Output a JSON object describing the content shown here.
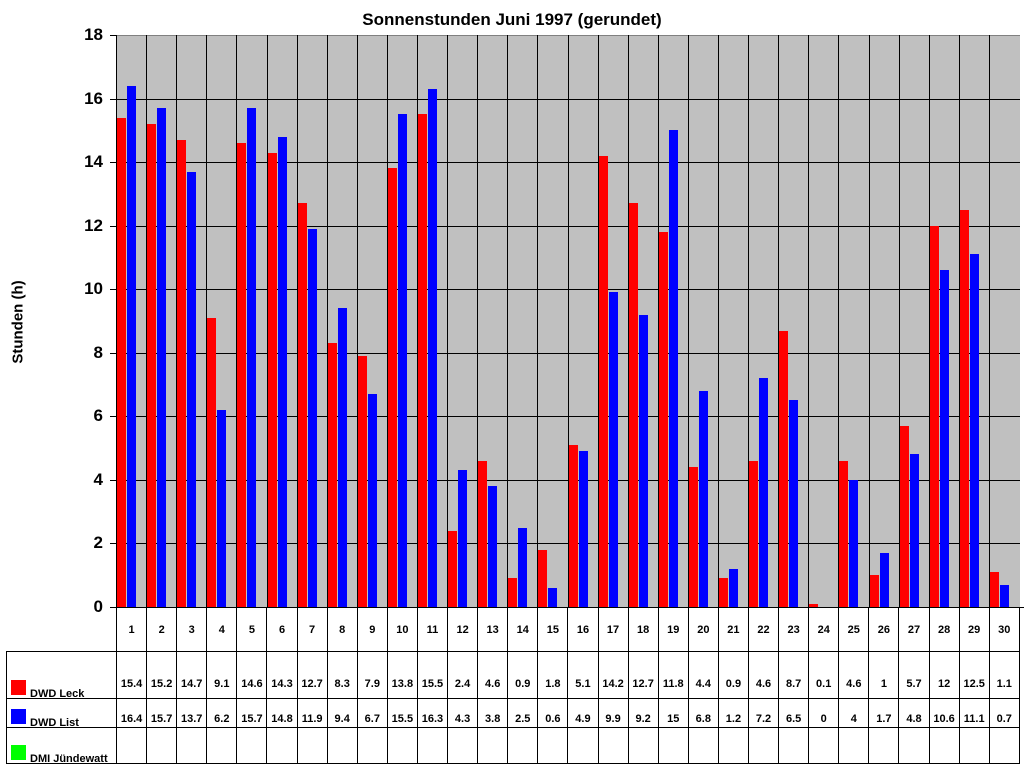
{
  "chart_data": {
    "type": "bar",
    "title": "Sonnenstunden Juni 1997 (gerundet)",
    "xlabel": "",
    "ylabel": "Stunden (h)",
    "ylim": [
      0,
      18
    ],
    "yticks": [
      0,
      2,
      4,
      6,
      8,
      10,
      12,
      14,
      16,
      18
    ],
    "grid": true,
    "legend_position": "data-table-left",
    "categories": [
      "1",
      "2",
      "3",
      "4",
      "5",
      "6",
      "7",
      "8",
      "9",
      "10",
      "11",
      "12",
      "13",
      "14",
      "15",
      "16",
      "17",
      "18",
      "19",
      "20",
      "21",
      "22",
      "23",
      "24",
      "25",
      "26",
      "27",
      "28",
      "29",
      "30"
    ],
    "series": [
      {
        "name": "DWD Leck",
        "color": "#ff0000",
        "values": [
          15.4,
          15.2,
          14.7,
          9.1,
          14.6,
          14.3,
          12.7,
          8.3,
          7.9,
          13.8,
          15.5,
          2.4,
          4.6,
          0.9,
          1.8,
          5.1,
          14.2,
          12.7,
          11.8,
          4.4,
          0.9,
          4.6,
          8.7,
          0.1,
          4.6,
          1,
          5.7,
          12,
          12.5,
          1.1
        ]
      },
      {
        "name": "DWD List",
        "color": "#0000ff",
        "values": [
          16.4,
          15.7,
          13.7,
          6.2,
          15.7,
          14.8,
          11.9,
          9.4,
          6.7,
          15.5,
          16.3,
          4.3,
          3.8,
          2.5,
          0.6,
          4.9,
          9.9,
          9.2,
          15,
          6.8,
          1.2,
          7.2,
          6.5,
          0,
          4,
          1.7,
          4.8,
          10.6,
          11.1,
          0.7
        ]
      },
      {
        "name": "DMI Jündewatt",
        "color": "#00ff00",
        "values": [
          null,
          null,
          null,
          null,
          null,
          null,
          null,
          null,
          null,
          null,
          null,
          null,
          null,
          null,
          null,
          null,
          null,
          null,
          null,
          null,
          null,
          null,
          null,
          null,
          null,
          null,
          null,
          null,
          null,
          null
        ]
      }
    ],
    "data_table": {
      "rows": [
        {
          "label": "DWD Leck",
          "values": [
            "15.4",
            "15.2",
            "14.7",
            "9.1",
            "14.6",
            "14.3",
            "12.7",
            "8.3",
            "7.9",
            "13.8",
            "15.5",
            "2.4",
            "4.6",
            "0.9",
            "1.8",
            "5.1",
            "14.2",
            "12.7",
            "11.8",
            "4.4",
            "0.9",
            "4.6",
            "8.7",
            "0.1",
            "4.6",
            "1",
            "5.7",
            "12",
            "12.5",
            "1.1"
          ]
        },
        {
          "label": "DWD List",
          "values": [
            "16.4",
            "15.7",
            "13.7",
            "6.2",
            "15.7",
            "14.8",
            "11.9",
            "9.4",
            "6.7",
            "15.5",
            "16.3",
            "4.3",
            "3.8",
            "2.5",
            "0.6",
            "4.9",
            "9.9",
            "9.2",
            "15",
            "6.8",
            "1.2",
            "7.2",
            "6.5",
            "0",
            "4",
            "1.7",
            "4.8",
            "10.6",
            "11.1",
            "0.7"
          ]
        },
        {
          "label": "DMI Jündewatt",
          "values": [
            "",
            "",
            "",
            "",
            "",
            "",
            "",
            "",
            "",
            "",
            "",
            "",
            "",
            "",
            "",
            "",
            "",
            "",
            "",
            "",
            "",
            "",
            "",
            "",
            "",
            "",
            "",
            "",
            "",
            ""
          ]
        }
      ]
    }
  },
  "colors": {
    "plot_background": "#c0c0c0",
    "leck": "#ff0000",
    "list": "#0000ff",
    "dmi": "#00ff00"
  }
}
